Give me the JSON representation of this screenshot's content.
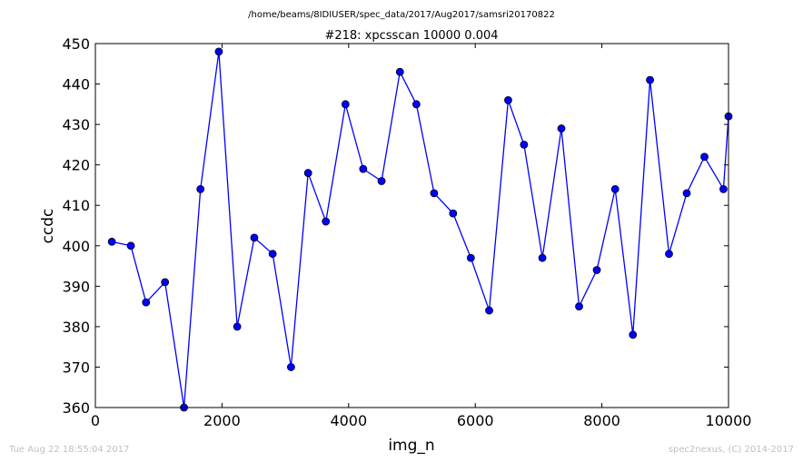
{
  "figure": {
    "suptitle": "/home/beams/8IDIUSER/spec_data/2017/Aug2017/samsri20170822",
    "timestamp": "Tue Aug 22 18:55:04 2017",
    "credit": "spec2nexus, (C) 2014-2017"
  },
  "chart_data": {
    "type": "line",
    "title": "#218: xpcsscan 10000 0.004",
    "xlabel": "img_n",
    "ylabel": "ccdc",
    "xlim": [
      0,
      10000
    ],
    "ylim": [
      360,
      450
    ],
    "xticks": [
      0,
      2000,
      4000,
      6000,
      8000,
      10000
    ],
    "yticks": [
      360,
      370,
      380,
      390,
      400,
      410,
      420,
      430,
      440,
      450
    ],
    "grid": false,
    "line_color": "#0000ff",
    "marker": "circle",
    "x": [
      260,
      560,
      800,
      1100,
      1400,
      1660,
      1950,
      2240,
      2510,
      2800,
      3090,
      3360,
      3640,
      3950,
      4230,
      4520,
      4810,
      5070,
      5350,
      5650,
      5930,
      6220,
      6520,
      6770,
      7060,
      7360,
      7640,
      7920,
      8210,
      8490,
      8760,
      9060,
      9340,
      9620,
      9920,
      10000
    ],
    "y": [
      401,
      400,
      386,
      391,
      360,
      414,
      448,
      380,
      402,
      398,
      370,
      418,
      406,
      435,
      419,
      416,
      443,
      435,
      413,
      408,
      397,
      384,
      436,
      425,
      397,
      429,
      385,
      394,
      414,
      378,
      441,
      398,
      413,
      422,
      414,
      432
    ]
  }
}
